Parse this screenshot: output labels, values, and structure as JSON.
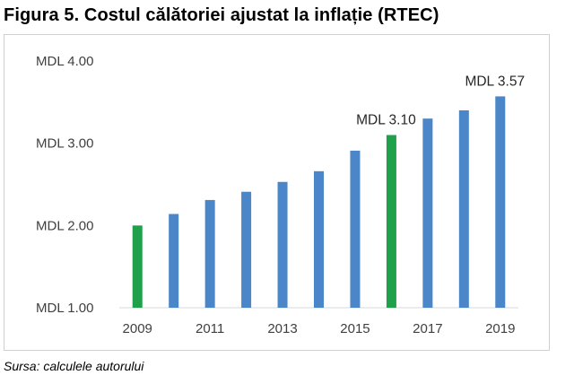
{
  "title": "Figura 5. Costul călătoriei ajustat la inflație (RTEC)",
  "source": "Sursa: calculele autorului",
  "chart_data": {
    "type": "bar",
    "title": "Figura 5. Costul călătoriei ajustat la inflație (RTEC)",
    "categories": [
      "2009",
      "2010",
      "2011",
      "2012",
      "2013",
      "2014",
      "2015",
      "2016",
      "2017",
      "2018",
      "2019"
    ],
    "x_tick_labels": [
      "2009",
      "2011",
      "2013",
      "2015",
      "2017",
      "2019"
    ],
    "values": [
      2.0,
      2.14,
      2.31,
      2.41,
      2.53,
      2.66,
      2.91,
      3.1,
      3.3,
      3.4,
      3.57
    ],
    "y_tick_labels": [
      "MDL 1.00",
      "MDL 2.00",
      "MDL 3.00",
      "MDL 4.00"
    ],
    "ylim": [
      1.0,
      4.0
    ],
    "data_labels": [
      {
        "category": "2016",
        "text": "MDL 3.10"
      },
      {
        "category": "2019",
        "text": "MDL 3.57"
      }
    ],
    "grid": false,
    "colors": {
      "default": "#4a86c8",
      "highlight": "#1fa04a"
    },
    "highlighted": [
      "2009",
      "2016"
    ]
  }
}
